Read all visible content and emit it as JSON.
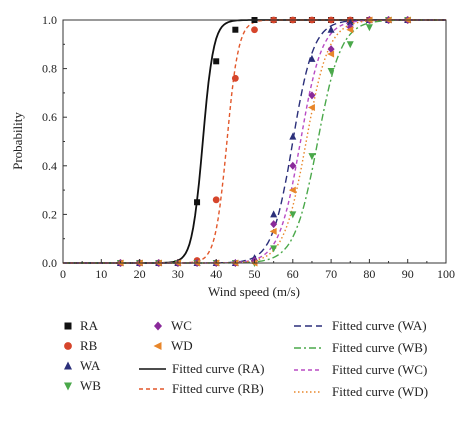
{
  "chart_data": {
    "type": "scatter",
    "xlabel": "Wind speed (m/s)",
    "ylabel": "Probability",
    "xlim": [
      0,
      100
    ],
    "ylim": [
      0,
      1
    ],
    "xticks": [
      "0",
      "10",
      "20",
      "30",
      "40",
      "50",
      "60",
      "70",
      "80",
      "90",
      "100"
    ],
    "yticks": [
      "0.0",
      "0.2",
      "0.4",
      "0.6",
      "0.8",
      "1.0"
    ],
    "grid": false,
    "legend_position": "bottom",
    "series": [
      {
        "name": "RA",
        "marker": "square",
        "color": "#111111",
        "x": [
          15,
          20,
          25,
          30,
          35,
          40,
          45,
          50,
          55,
          60,
          65,
          70,
          75,
          80,
          85,
          90
        ],
        "y": [
          0,
          0,
          0,
          0,
          0.25,
          0.83,
          0.96,
          1,
          1,
          1,
          1,
          1,
          1,
          1,
          1,
          1
        ]
      },
      {
        "name": "RB",
        "marker": "circle",
        "color": "#d6452b",
        "x": [
          15,
          20,
          25,
          30,
          35,
          40,
          45,
          50,
          55,
          60,
          65,
          70,
          75,
          80,
          85,
          90
        ],
        "y": [
          0,
          0,
          0,
          0,
          0.01,
          0.26,
          0.76,
          0.96,
          1,
          1,
          1,
          1,
          1,
          1,
          1,
          1
        ]
      },
      {
        "name": "WA",
        "marker": "triangle-up",
        "color": "#2b2f7a",
        "x": [
          15,
          20,
          25,
          30,
          35,
          40,
          45,
          50,
          55,
          60,
          65,
          70,
          75,
          80,
          85,
          90
        ],
        "y": [
          0,
          0,
          0,
          0,
          0,
          0,
          0,
          0.02,
          0.2,
          0.52,
          0.84,
          0.96,
          0.99,
          1,
          1,
          1
        ]
      },
      {
        "name": "WB",
        "marker": "triangle-down",
        "color": "#4aa84a",
        "x": [
          15,
          20,
          25,
          30,
          35,
          40,
          45,
          50,
          55,
          60,
          65,
          70,
          75,
          80,
          85,
          90
        ],
        "y": [
          0,
          0,
          0,
          0,
          0,
          0,
          0,
          0,
          0.06,
          0.2,
          0.44,
          0.79,
          0.9,
          0.97,
          1,
          1
        ]
      },
      {
        "name": "WC",
        "marker": "diamond",
        "color": "#8a2a9a",
        "x": [
          15,
          20,
          25,
          30,
          35,
          40,
          45,
          50,
          55,
          60,
          65,
          70,
          75,
          80,
          85,
          90
        ],
        "y": [
          0,
          0,
          0,
          0,
          0,
          0,
          0,
          0.01,
          0.16,
          0.4,
          0.69,
          0.88,
          0.97,
          1,
          1,
          1
        ]
      },
      {
        "name": "WD",
        "marker": "triangle-left",
        "color": "#e8862a",
        "x": [
          15,
          20,
          25,
          30,
          35,
          40,
          45,
          50,
          55,
          60,
          65,
          70,
          75,
          80,
          85,
          90
        ],
        "y": [
          0,
          0,
          0,
          0,
          0,
          0,
          0,
          0,
          0.13,
          0.3,
          0.64,
          0.86,
          0.96,
          1,
          1,
          1
        ]
      }
    ],
    "fitted_curves": [
      {
        "name": "Fitted curve (RA)",
        "style": "solid",
        "color": "#111111",
        "mu": 36.5,
        "sigma": 2.4
      },
      {
        "name": "Fitted curve (RB)",
        "style": "dashed",
        "color": "#e2572a",
        "mu": 42.8,
        "sigma": 2.6
      },
      {
        "name": "Fitted curve (WA)",
        "style": "long-dash",
        "color": "#2b2f7a",
        "mu": 60.0,
        "sigma": 4.6
      },
      {
        "name": "Fitted curve (WB)",
        "style": "dash-dot",
        "color": "#4aa84a",
        "mu": 66.5,
        "sigma": 5.2
      },
      {
        "name": "Fitted curve (WC)",
        "style": "dashed",
        "color": "#b84bc4",
        "mu": 62.0,
        "sigma": 4.8
      },
      {
        "name": "Fitted curve (WD)",
        "style": "dotted",
        "color": "#e8862a",
        "mu": 63.5,
        "sigma": 5.0
      }
    ],
    "legend": {
      "markers_col1": [
        "RA",
        "RB",
        "WA",
        "WB"
      ],
      "markers_col2": [
        "WC",
        "WD"
      ],
      "curves_mid": [
        "Fitted curve (RA)",
        "Fitted curve (RB)"
      ],
      "curves_right": [
        "Fitted curve (WA)",
        "Fitted curve (WB)",
        "Fitted curve (WC)",
        "Fitted curve (WD)"
      ]
    }
  }
}
